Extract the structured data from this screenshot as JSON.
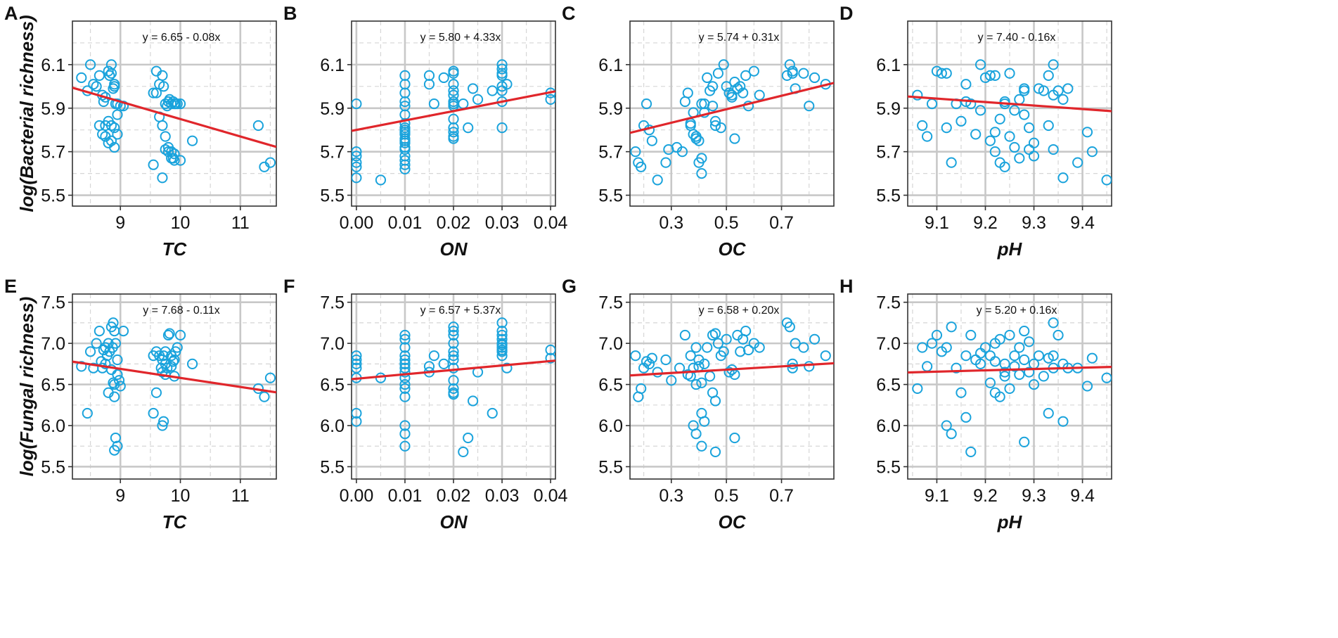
{
  "figure_colors": {
    "point": "#1aa3dc",
    "fit_line": "#e0262b",
    "grid_major": "#c8c8c8",
    "grid_minor": "#d6d6d6",
    "axis": "#333333"
  },
  "chart_data": [
    {
      "panel": "A",
      "type": "scatter",
      "xlabel": "TC",
      "ylabel": "log(Bacterial richness)",
      "equation": "y = 6.65 - 0.08x",
      "intercept": 6.65,
      "slope": -0.08,
      "xlim": [
        8.2,
        11.6
      ],
      "ylim": [
        5.45,
        6.3
      ],
      "xticks": [
        9,
        10,
        11
      ],
      "xtick_labels": [
        "9",
        "10",
        "11"
      ],
      "yticks": [
        5.5,
        5.7,
        5.9,
        6.1
      ],
      "ytick_labels": [
        "5.5",
        "5.7",
        "5.9",
        "6.1"
      ],
      "x": [
        8.35,
        8.45,
        8.5,
        8.55,
        8.6,
        8.65,
        8.7,
        8.72,
        8.75,
        8.8,
        8.82,
        8.85,
        8.85,
        8.88,
        8.9,
        8.9,
        8.92,
        8.95,
        8.95,
        8.75,
        8.8,
        8.85,
        8.9,
        8.65,
        8.7,
        8.75,
        8.8,
        8.85,
        8.9,
        8.95,
        9.0,
        9.05,
        9.55,
        9.6,
        9.6,
        9.65,
        9.7,
        9.72,
        9.75,
        9.78,
        9.8,
        9.82,
        9.85,
        9.88,
        9.9,
        9.92,
        9.95,
        10.0,
        9.65,
        9.7,
        9.75,
        9.8,
        9.85,
        9.9,
        9.75,
        9.8,
        9.85,
        9.88,
        9.9,
        10.0,
        10.2,
        11.3,
        11.4,
        11.5,
        9.55,
        9.7
      ],
      "y": [
        6.04,
        5.98,
        6.1,
        6.01,
        6.0,
        6.05,
        5.96,
        5.93,
        5.95,
        6.07,
        6.05,
        6.1,
        6.06,
        5.99,
        6.0,
        6.01,
        5.92,
        5.87,
        5.92,
        5.82,
        5.84,
        5.82,
        5.81,
        5.82,
        5.78,
        5.77,
        5.74,
        5.75,
        5.72,
        5.78,
        5.91,
        5.91,
        5.97,
        6.07,
        5.97,
        6.01,
        6.05,
        6.0,
        5.92,
        5.91,
        5.93,
        5.94,
        5.92,
        5.93,
        5.92,
        5.92,
        5.92,
        5.92,
        5.86,
        5.82,
        5.77,
        5.72,
        5.7,
        5.69,
        5.71,
        5.7,
        5.67,
        5.67,
        5.66,
        5.66,
        5.75,
        5.82,
        5.63,
        5.65,
        5.64,
        5.58
      ]
    },
    {
      "panel": "B",
      "type": "scatter",
      "xlabel": "ON",
      "ylabel": "",
      "equation": "y = 5.80 + 4.33x",
      "intercept": 5.8,
      "slope": 4.33,
      "xlim": [
        -0.001,
        0.041
      ],
      "ylim": [
        5.45,
        6.3
      ],
      "xticks": [
        0.0,
        0.01,
        0.02,
        0.03,
        0.04
      ],
      "xtick_labels": [
        "0.00",
        "0.01",
        "0.02",
        "0.03",
        "0.04"
      ],
      "yticks": [
        5.5,
        5.7,
        5.9,
        6.1
      ],
      "ytick_labels": [
        "5.5",
        "5.7",
        "5.9",
        "6.1"
      ],
      "x": [
        0.0,
        0.0,
        0.0,
        0.0,
        0.0,
        0.0,
        0.005,
        0.01,
        0.01,
        0.01,
        0.01,
        0.01,
        0.01,
        0.01,
        0.01,
        0.01,
        0.01,
        0.01,
        0.01,
        0.01,
        0.01,
        0.01,
        0.01,
        0.01,
        0.01,
        0.01,
        0.01,
        0.015,
        0.015,
        0.016,
        0.018,
        0.02,
        0.02,
        0.02,
        0.02,
        0.02,
        0.02,
        0.02,
        0.02,
        0.02,
        0.02,
        0.02,
        0.02,
        0.02,
        0.022,
        0.023,
        0.024,
        0.025,
        0.028,
        0.03,
        0.03,
        0.03,
        0.03,
        0.03,
        0.03,
        0.03,
        0.03,
        0.031,
        0.04,
        0.04
      ],
      "y": [
        5.92,
        5.7,
        5.68,
        5.65,
        5.63,
        5.58,
        5.57,
        6.05,
        6.01,
        5.97,
        5.93,
        5.91,
        5.87,
        5.83,
        5.81,
        5.79,
        5.78,
        5.76,
        5.74,
        5.72,
        5.71,
        5.68,
        5.66,
        5.64,
        5.62,
        5.8,
        5.75,
        6.05,
        6.01,
        5.92,
        6.04,
        6.07,
        6.06,
        6.01,
        5.98,
        5.96,
        5.93,
        5.92,
        5.91,
        5.85,
        5.81,
        5.79,
        5.77,
        5.76,
        5.92,
        5.81,
        5.99,
        5.94,
        5.98,
        6.1,
        6.08,
        6.06,
        6.05,
        6.0,
        5.98,
        5.93,
        5.81,
        6.01,
        5.97,
        5.94
      ]
    },
    {
      "panel": "C",
      "type": "scatter",
      "xlabel": "OC",
      "ylabel": "",
      "equation": "y = 5.74 + 0.31x",
      "intercept": 5.74,
      "slope": 0.31,
      "xlim": [
        0.15,
        0.89
      ],
      "ylim": [
        5.45,
        6.3
      ],
      "xticks": [
        0.3,
        0.5,
        0.7
      ],
      "xtick_labels": [
        "0.3",
        "0.5",
        "0.7"
      ],
      "yticks": [
        5.5,
        5.7,
        5.9,
        6.1
      ],
      "ytick_labels": [
        "5.5",
        "5.7",
        "5.9",
        "6.1"
      ],
      "x": [
        0.17,
        0.18,
        0.19,
        0.2,
        0.21,
        0.22,
        0.23,
        0.25,
        0.28,
        0.29,
        0.32,
        0.34,
        0.35,
        0.36,
        0.37,
        0.37,
        0.38,
        0.38,
        0.39,
        0.39,
        0.4,
        0.4,
        0.41,
        0.41,
        0.42,
        0.42,
        0.43,
        0.44,
        0.45,
        0.45,
        0.46,
        0.46,
        0.47,
        0.48,
        0.49,
        0.5,
        0.51,
        0.52,
        0.52,
        0.53,
        0.54,
        0.55,
        0.56,
        0.57,
        0.58,
        0.6,
        0.62,
        0.72,
        0.73,
        0.74,
        0.74,
        0.75,
        0.78,
        0.8,
        0.82,
        0.86,
        0.53,
        0.41
      ],
      "y": [
        5.7,
        5.65,
        5.63,
        5.82,
        5.92,
        5.8,
        5.75,
        5.57,
        5.65,
        5.71,
        5.72,
        5.7,
        5.93,
        5.97,
        5.83,
        5.82,
        5.78,
        5.88,
        5.77,
        5.76,
        5.75,
        5.65,
        5.6,
        5.92,
        5.88,
        5.92,
        6.04,
        5.98,
        6.0,
        5.91,
        5.84,
        5.82,
        6.06,
        5.81,
        6.1,
        6.0,
        5.97,
        5.96,
        5.95,
        6.02,
        5.99,
        6.0,
        5.97,
        6.05,
        5.91,
        6.07,
        5.96,
        6.05,
        6.1,
        6.06,
        6.07,
        5.99,
        6.06,
        5.91,
        6.04,
        6.01,
        5.76,
        5.67
      ]
    },
    {
      "panel": "D",
      "type": "scatter",
      "xlabel": "pH",
      "ylabel": "",
      "equation": "y = 7.40 - 0.16x",
      "intercept": 7.4,
      "slope": -0.16,
      "xlim": [
        9.04,
        9.46
      ],
      "ylim": [
        5.45,
        6.3
      ],
      "xticks": [
        9.1,
        9.2,
        9.3,
        9.4
      ],
      "xtick_labels": [
        "9.1",
        "9.2",
        "9.3",
        "9.4"
      ],
      "yticks": [
        5.5,
        5.7,
        5.9,
        6.1
      ],
      "ytick_labels": [
        "5.5",
        "5.7",
        "5.9",
        "6.1"
      ],
      "x": [
        9.06,
        9.07,
        9.08,
        9.09,
        9.1,
        9.11,
        9.12,
        9.13,
        9.14,
        9.15,
        9.16,
        9.17,
        9.18,
        9.19,
        9.2,
        9.21,
        9.22,
        9.22,
        9.23,
        9.24,
        9.24,
        9.25,
        9.26,
        9.27,
        9.28,
        9.28,
        9.29,
        9.3,
        9.31,
        9.32,
        9.33,
        9.34,
        9.34,
        9.35,
        9.36,
        9.37,
        9.21,
        9.22,
        9.23,
        9.24,
        9.25,
        9.26,
        9.27,
        9.29,
        9.3,
        9.33,
        9.34,
        9.36,
        9.39,
        9.41,
        9.42,
        9.45,
        9.12,
        9.16,
        9.19,
        9.28
      ],
      "y": [
        5.96,
        5.82,
        5.77,
        5.92,
        6.07,
        6.06,
        5.81,
        5.65,
        5.92,
        5.84,
        5.93,
        5.92,
        5.78,
        5.89,
        6.04,
        6.05,
        6.05,
        5.79,
        5.85,
        5.92,
        5.93,
        6.06,
        5.89,
        5.94,
        5.99,
        5.87,
        5.81,
        5.74,
        5.99,
        5.98,
        6.05,
        6.1,
        5.96,
        5.98,
        5.94,
        5.99,
        5.75,
        5.7,
        5.65,
        5.63,
        5.77,
        5.72,
        5.67,
        5.71,
        5.68,
        5.82,
        5.71,
        5.58,
        5.65,
        5.79,
        5.7,
        5.57,
        6.06,
        6.01,
        6.1,
        5.98
      ]
    },
    {
      "panel": "E",
      "type": "scatter",
      "xlabel": "TC",
      "ylabel": "log(Fungal richness)",
      "equation": "y = 7.68 - 0.11x",
      "intercept": 7.68,
      "slope": -0.11,
      "xlim": [
        8.2,
        11.6
      ],
      "ylim": [
        5.35,
        7.6
      ],
      "xticks": [
        9,
        10,
        11
      ],
      "xtick_labels": [
        "9",
        "10",
        "11"
      ],
      "yticks": [
        5.5,
        6.0,
        6.5,
        7.0,
        7.5
      ],
      "ytick_labels": [
        "5.5",
        "6.0",
        "6.5",
        "7.0",
        "7.5"
      ],
      "x": [
        8.35,
        8.45,
        8.5,
        8.55,
        8.6,
        8.65,
        8.68,
        8.7,
        8.72,
        8.75,
        8.78,
        8.8,
        8.82,
        8.85,
        8.87,
        8.88,
        8.9,
        8.92,
        8.95,
        8.98,
        9.0,
        9.05,
        8.75,
        8.8,
        8.85,
        8.9,
        8.88,
        8.9,
        8.92,
        8.95,
        8.9,
        8.95,
        9.55,
        9.6,
        9.65,
        9.68,
        9.7,
        9.72,
        9.75,
        9.78,
        9.8,
        9.82,
        9.85,
        9.88,
        9.9,
        9.92,
        9.95,
        10.0,
        9.7,
        9.75,
        9.85,
        9.9,
        9.55,
        9.7,
        9.72,
        10.2,
        11.3,
        11.4,
        11.5,
        9.6,
        9.75
      ],
      "y": [
        6.72,
        6.15,
        6.9,
        6.7,
        7.0,
        7.15,
        6.78,
        6.7,
        6.92,
        6.95,
        6.85,
        7.0,
        6.9,
        7.2,
        6.95,
        7.25,
        7.15,
        7.0,
        6.8,
        6.55,
        6.48,
        7.15,
        6.75,
        6.4,
        6.68,
        6.5,
        6.52,
        6.35,
        5.85,
        5.75,
        5.7,
        6.62,
        6.85,
        6.9,
        6.85,
        6.7,
        6.8,
        6.85,
        6.75,
        6.7,
        7.1,
        7.12,
        6.85,
        6.78,
        6.8,
        6.9,
        6.95,
        7.1,
        6.65,
        6.62,
        6.72,
        6.6,
        6.15,
        6.0,
        6.05,
        6.75,
        6.45,
        6.35,
        6.58,
        6.4,
        6.9
      ]
    },
    {
      "panel": "F",
      "type": "scatter",
      "xlabel": "ON",
      "ylabel": "",
      "equation": "y = 6.57 + 5.37x",
      "intercept": 6.57,
      "slope": 5.37,
      "xlim": [
        -0.001,
        0.041
      ],
      "ylim": [
        5.35,
        7.6
      ],
      "xticks": [
        0.0,
        0.01,
        0.02,
        0.03,
        0.04
      ],
      "xtick_labels": [
        "0.00",
        "0.01",
        "0.02",
        "0.03",
        "0.04"
      ],
      "yticks": [
        5.5,
        6.0,
        6.5,
        7.0,
        7.5
      ],
      "ytick_labels": [
        "5.5",
        "6.0",
        "6.5",
        "7.0",
        "7.5"
      ],
      "x": [
        0.0,
        0.0,
        0.0,
        0.0,
        0.0,
        0.0,
        0.0,
        0.005,
        0.01,
        0.01,
        0.01,
        0.01,
        0.01,
        0.01,
        0.01,
        0.01,
        0.01,
        0.01,
        0.01,
        0.01,
        0.01,
        0.01,
        0.01,
        0.01,
        0.015,
        0.015,
        0.016,
        0.018,
        0.02,
        0.02,
        0.02,
        0.02,
        0.02,
        0.02,
        0.02,
        0.02,
        0.02,
        0.02,
        0.02,
        0.02,
        0.022,
        0.023,
        0.024,
        0.025,
        0.028,
        0.03,
        0.03,
        0.03,
        0.03,
        0.03,
        0.03,
        0.03,
        0.03,
        0.03,
        0.03,
        0.031,
        0.04,
        0.04
      ],
      "y": [
        6.85,
        6.8,
        6.75,
        6.7,
        6.58,
        6.15,
        6.05,
        6.58,
        7.1,
        7.05,
        6.95,
        6.85,
        6.8,
        6.75,
        6.7,
        6.65,
        6.58,
        6.5,
        6.45,
        6.35,
        6.0,
        5.9,
        5.75,
        6.75,
        6.72,
        6.65,
        6.85,
        6.75,
        7.2,
        7.15,
        7.1,
        7.0,
        6.9,
        6.85,
        6.8,
        6.7,
        6.55,
        6.45,
        6.4,
        6.38,
        5.68,
        5.85,
        6.3,
        6.65,
        6.15,
        7.25,
        7.15,
        7.1,
        7.05,
        7.0,
        6.98,
        6.95,
        6.92,
        6.9,
        6.85,
        6.7,
        6.92,
        6.82
      ]
    },
    {
      "panel": "G",
      "type": "scatter",
      "xlabel": "OC",
      "ylabel": "",
      "equation": "y = 6.58 + 0.20x",
      "intercept": 6.58,
      "slope": 0.2,
      "xlim": [
        0.15,
        0.89
      ],
      "ylim": [
        5.35,
        7.6
      ],
      "xticks": [
        0.3,
        0.5,
        0.7
      ],
      "xtick_labels": [
        "0.3",
        "0.5",
        "0.7"
      ],
      "yticks": [
        5.5,
        6.0,
        6.5,
        7.0,
        7.5
      ],
      "ytick_labels": [
        "5.5",
        "6.0",
        "6.5",
        "7.0",
        "7.5"
      ],
      "x": [
        0.17,
        0.18,
        0.19,
        0.2,
        0.21,
        0.22,
        0.23,
        0.25,
        0.28,
        0.3,
        0.33,
        0.35,
        0.36,
        0.37,
        0.37,
        0.38,
        0.38,
        0.39,
        0.39,
        0.4,
        0.4,
        0.41,
        0.41,
        0.42,
        0.42,
        0.43,
        0.44,
        0.45,
        0.45,
        0.46,
        0.46,
        0.47,
        0.48,
        0.49,
        0.5,
        0.51,
        0.52,
        0.53,
        0.54,
        0.55,
        0.56,
        0.57,
        0.58,
        0.6,
        0.62,
        0.72,
        0.73,
        0.74,
        0.74,
        0.75,
        0.78,
        0.8,
        0.82,
        0.86,
        0.53,
        0.41,
        0.46,
        0.39
      ],
      "y": [
        6.85,
        6.35,
        6.45,
        6.7,
        6.78,
        6.75,
        6.82,
        6.65,
        6.8,
        6.55,
        6.7,
        7.1,
        6.62,
        6.6,
        6.85,
        6.0,
        6.7,
        6.5,
        6.95,
        6.72,
        6.8,
        6.15,
        6.52,
        6.05,
        6.75,
        6.95,
        6.6,
        6.4,
        7.1,
        6.3,
        7.12,
        7.0,
        6.85,
        6.9,
        7.05,
        6.65,
        6.68,
        6.62,
        7.1,
        6.9,
        7.05,
        7.15,
        6.92,
        7.0,
        6.95,
        7.25,
        7.2,
        6.75,
        6.7,
        7.0,
        6.95,
        6.72,
        7.05,
        6.85,
        5.85,
        5.75,
        5.68,
        5.9
      ]
    },
    {
      "panel": "H",
      "type": "scatter",
      "xlabel": "pH",
      "ylabel": "",
      "equation": "y = 5.20 + 0.16x",
      "intercept": 5.2,
      "slope": 0.16,
      "xlim": [
        9.04,
        9.46
      ],
      "ylim": [
        5.35,
        7.6
      ],
      "xticks": [
        9.1,
        9.2,
        9.3,
        9.4
      ],
      "xtick_labels": [
        "9.1",
        "9.2",
        "9.3",
        "9.4"
      ],
      "yticks": [
        5.5,
        6.0,
        6.5,
        7.0,
        7.5
      ],
      "ytick_labels": [
        "5.5",
        "6.0",
        "6.5",
        "7.0",
        "7.5"
      ],
      "x": [
        9.06,
        9.07,
        9.08,
        9.09,
        9.1,
        9.11,
        9.12,
        9.13,
        9.14,
        9.15,
        9.16,
        9.17,
        9.18,
        9.19,
        9.2,
        9.21,
        9.22,
        9.22,
        9.23,
        9.24,
        9.24,
        9.25,
        9.26,
        9.27,
        9.28,
        9.28,
        9.29,
        9.3,
        9.31,
        9.32,
        9.33,
        9.34,
        9.34,
        9.35,
        9.36,
        9.37,
        9.21,
        9.22,
        9.23,
        9.24,
        9.25,
        9.26,
        9.27,
        9.29,
        9.3,
        9.33,
        9.34,
        9.36,
        9.39,
        9.41,
        9.42,
        9.45,
        9.12,
        9.16,
        9.19,
        9.28,
        9.13,
        9.17
      ],
      "y": [
        6.45,
        6.95,
        6.72,
        7.0,
        7.1,
        6.9,
        6.95,
        7.2,
        6.7,
        6.4,
        6.85,
        7.1,
        6.8,
        6.75,
        6.95,
        6.85,
        7.0,
        6.78,
        7.05,
        6.65,
        6.75,
        7.1,
        6.85,
        6.95,
        7.15,
        6.8,
        7.02,
        6.75,
        6.85,
        6.6,
        6.82,
        6.7,
        7.25,
        7.1,
        6.75,
        6.7,
        6.52,
        6.4,
        6.35,
        6.6,
        6.45,
        6.72,
        6.62,
        6.65,
        6.5,
        6.15,
        6.85,
        6.05,
        6.7,
        6.48,
        6.82,
        6.58,
        6.0,
        6.1,
        6.88,
        5.8,
        5.9,
        5.68
      ]
    }
  ]
}
